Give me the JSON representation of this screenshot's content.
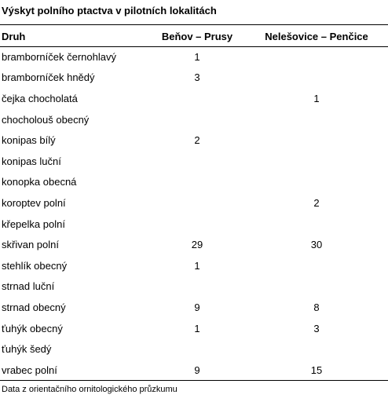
{
  "title": "Výskyt polního ptactva v pilotních lokalitách",
  "columns": [
    "Druh",
    "Beňov – Prusy",
    "Nelešovice – Penčice"
  ],
  "rows": [
    {
      "species": "bramborníček černohlavý",
      "benov": "1",
      "nelesovice": ""
    },
    {
      "species": "bramborníček hnědý",
      "benov": "3",
      "nelesovice": ""
    },
    {
      "species": "čejka chocholatá",
      "benov": "",
      "nelesovice": "1"
    },
    {
      "species": "chocholouš obecný",
      "benov": "",
      "nelesovice": ""
    },
    {
      "species": "konipas bílý",
      "benov": "2",
      "nelesovice": ""
    },
    {
      "species": "konipas luční",
      "benov": "",
      "nelesovice": ""
    },
    {
      "species": "konopka obecná",
      "benov": "",
      "nelesovice": ""
    },
    {
      "species": "koroptev polní",
      "benov": "",
      "nelesovice": "2"
    },
    {
      "species": "křepelka polní",
      "benov": "",
      "nelesovice": ""
    },
    {
      "species": "skřivan polní",
      "benov": "29",
      "nelesovice": "30"
    },
    {
      "species": "stehlík obecný",
      "benov": "1",
      "nelesovice": ""
    },
    {
      "species": "strnad luční",
      "benov": "",
      "nelesovice": ""
    },
    {
      "species": "strnad obecný",
      "benov": "9",
      "nelesovice": "8"
    },
    {
      "species": "ťuhýk obecný",
      "benov": "1",
      "nelesovice": "3"
    },
    {
      "species": "ťuhýk šedý",
      "benov": "",
      "nelesovice": ""
    },
    {
      "species": "vrabec polní",
      "benov": "9",
      "nelesovice": "15"
    }
  ],
  "note": "Data z orientačního ornitologického průzkumu"
}
